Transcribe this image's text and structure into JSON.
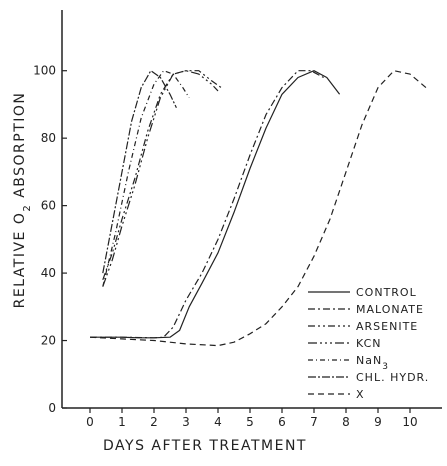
{
  "chart_data": {
    "type": "line",
    "xlabel": "DAYS AFTER TREATMENT",
    "ylabel": "RELATIVE O2 ABSORPTION",
    "ylabel_parts": {
      "pre": "RELATIVE O",
      "sub": "2",
      "post": " ABSORPTION"
    },
    "xlim": [
      0,
      11.8
    ],
    "ylim": [
      0,
      118
    ],
    "x_ticks": [
      0,
      1,
      2,
      3,
      4,
      5,
      6,
      7,
      8,
      9,
      10
    ],
    "y_ticks": [
      0,
      20,
      40,
      60,
      80,
      100
    ],
    "grid": false,
    "legend_position": "bottom-right",
    "series": [
      {
        "name": "CONTROL",
        "legend_label": {
          "pre": "CONTROL"
        },
        "dash": "",
        "points": [
          [
            0,
            21
          ],
          [
            0.5,
            21
          ],
          [
            1,
            21
          ],
          [
            1.5,
            20.8
          ],
          [
            2,
            20.8
          ],
          [
            2.5,
            21
          ],
          [
            2.8,
            23
          ],
          [
            3.1,
            30
          ],
          [
            3.5,
            37
          ],
          [
            4,
            46
          ],
          [
            4.5,
            58
          ],
          [
            5,
            71
          ],
          [
            5.5,
            83
          ],
          [
            6,
            93
          ],
          [
            6.5,
            98
          ],
          [
            7,
            100
          ],
          [
            7.4,
            98
          ],
          [
            7.8,
            93
          ]
        ]
      },
      {
        "name": "MALONATE",
        "legend_label": {
          "pre": "MALONATE"
        },
        "dash": "7,3,2,3",
        "points": [
          [
            0,
            21
          ],
          [
            1,
            21
          ],
          [
            2,
            20.8
          ],
          [
            2.3,
            21
          ],
          [
            2.6,
            24
          ],
          [
            3,
            32
          ],
          [
            3.5,
            40
          ],
          [
            4,
            50
          ],
          [
            4.5,
            62
          ],
          [
            5,
            75
          ],
          [
            5.5,
            87
          ],
          [
            6,
            95
          ],
          [
            6.5,
            100
          ],
          [
            6.9,
            100
          ],
          [
            7.3,
            98
          ]
        ]
      },
      {
        "name": "ARSENITE",
        "legend_label": {
          "pre": "ARSENITE"
        },
        "dash": "7,3,2,3,2,3",
        "points": [
          [
            0.4,
            38
          ],
          [
            0.7,
            46
          ],
          [
            1,
            56
          ],
          [
            1.4,
            68
          ],
          [
            1.8,
            82
          ],
          [
            2.2,
            93
          ],
          [
            2.6,
            99
          ],
          [
            3,
            100
          ],
          [
            3.4,
            100
          ],
          [
            3.8,
            97
          ],
          [
            4.1,
            95
          ]
        ]
      },
      {
        "name": "KCN",
        "legend_label": {
          "pre": "KCN"
        },
        "dash": "9,3,2,3,2,3,2,3",
        "points": [
          [
            0.4,
            36
          ],
          [
            0.7,
            44
          ],
          [
            1,
            54
          ],
          [
            1.4,
            66
          ],
          [
            1.8,
            80
          ],
          [
            2.2,
            92
          ],
          [
            2.6,
            99
          ],
          [
            3,
            100
          ],
          [
            3.4,
            99
          ],
          [
            3.8,
            96
          ],
          [
            4,
            94
          ]
        ]
      },
      {
        "name": "NaN3",
        "legend_label": {
          "pre": "NaN",
          "sub": "3"
        },
        "dash": "5,3,1,3",
        "points": [
          [
            0.4,
            36
          ],
          [
            0.8,
            52
          ],
          [
            1.2,
            70
          ],
          [
            1.6,
            86
          ],
          [
            2,
            96
          ],
          [
            2.3,
            100
          ],
          [
            2.6,
            99
          ],
          [
            2.9,
            95
          ],
          [
            3.1,
            92
          ]
        ]
      },
      {
        "name": "CHL. HYDR.",
        "legend_label": {
          "pre": "CHL. HYDR."
        },
        "dash": "8,2,2,2",
        "points": [
          [
            0.4,
            40
          ],
          [
            0.7,
            55
          ],
          [
            1,
            70
          ],
          [
            1.3,
            85
          ],
          [
            1.6,
            95
          ],
          [
            1.9,
            100
          ],
          [
            2.2,
            98
          ],
          [
            2.5,
            93
          ],
          [
            2.7,
            89
          ]
        ]
      },
      {
        "name": "X",
        "legend_label": {
          "pre": "X"
        },
        "dash": "6,4",
        "points": [
          [
            0,
            21
          ],
          [
            1,
            20.5
          ],
          [
            2,
            20
          ],
          [
            3,
            19
          ],
          [
            4,
            18.5
          ],
          [
            4.5,
            19.5
          ],
          [
            5,
            22
          ],
          [
            5.5,
            25
          ],
          [
            6,
            30
          ],
          [
            6.5,
            36
          ],
          [
            7,
            45
          ],
          [
            7.5,
            56
          ],
          [
            8,
            70
          ],
          [
            8.5,
            84
          ],
          [
            9,
            95
          ],
          [
            9.5,
            100
          ],
          [
            10,
            99
          ],
          [
            10.5,
            95
          ]
        ]
      }
    ]
  }
}
